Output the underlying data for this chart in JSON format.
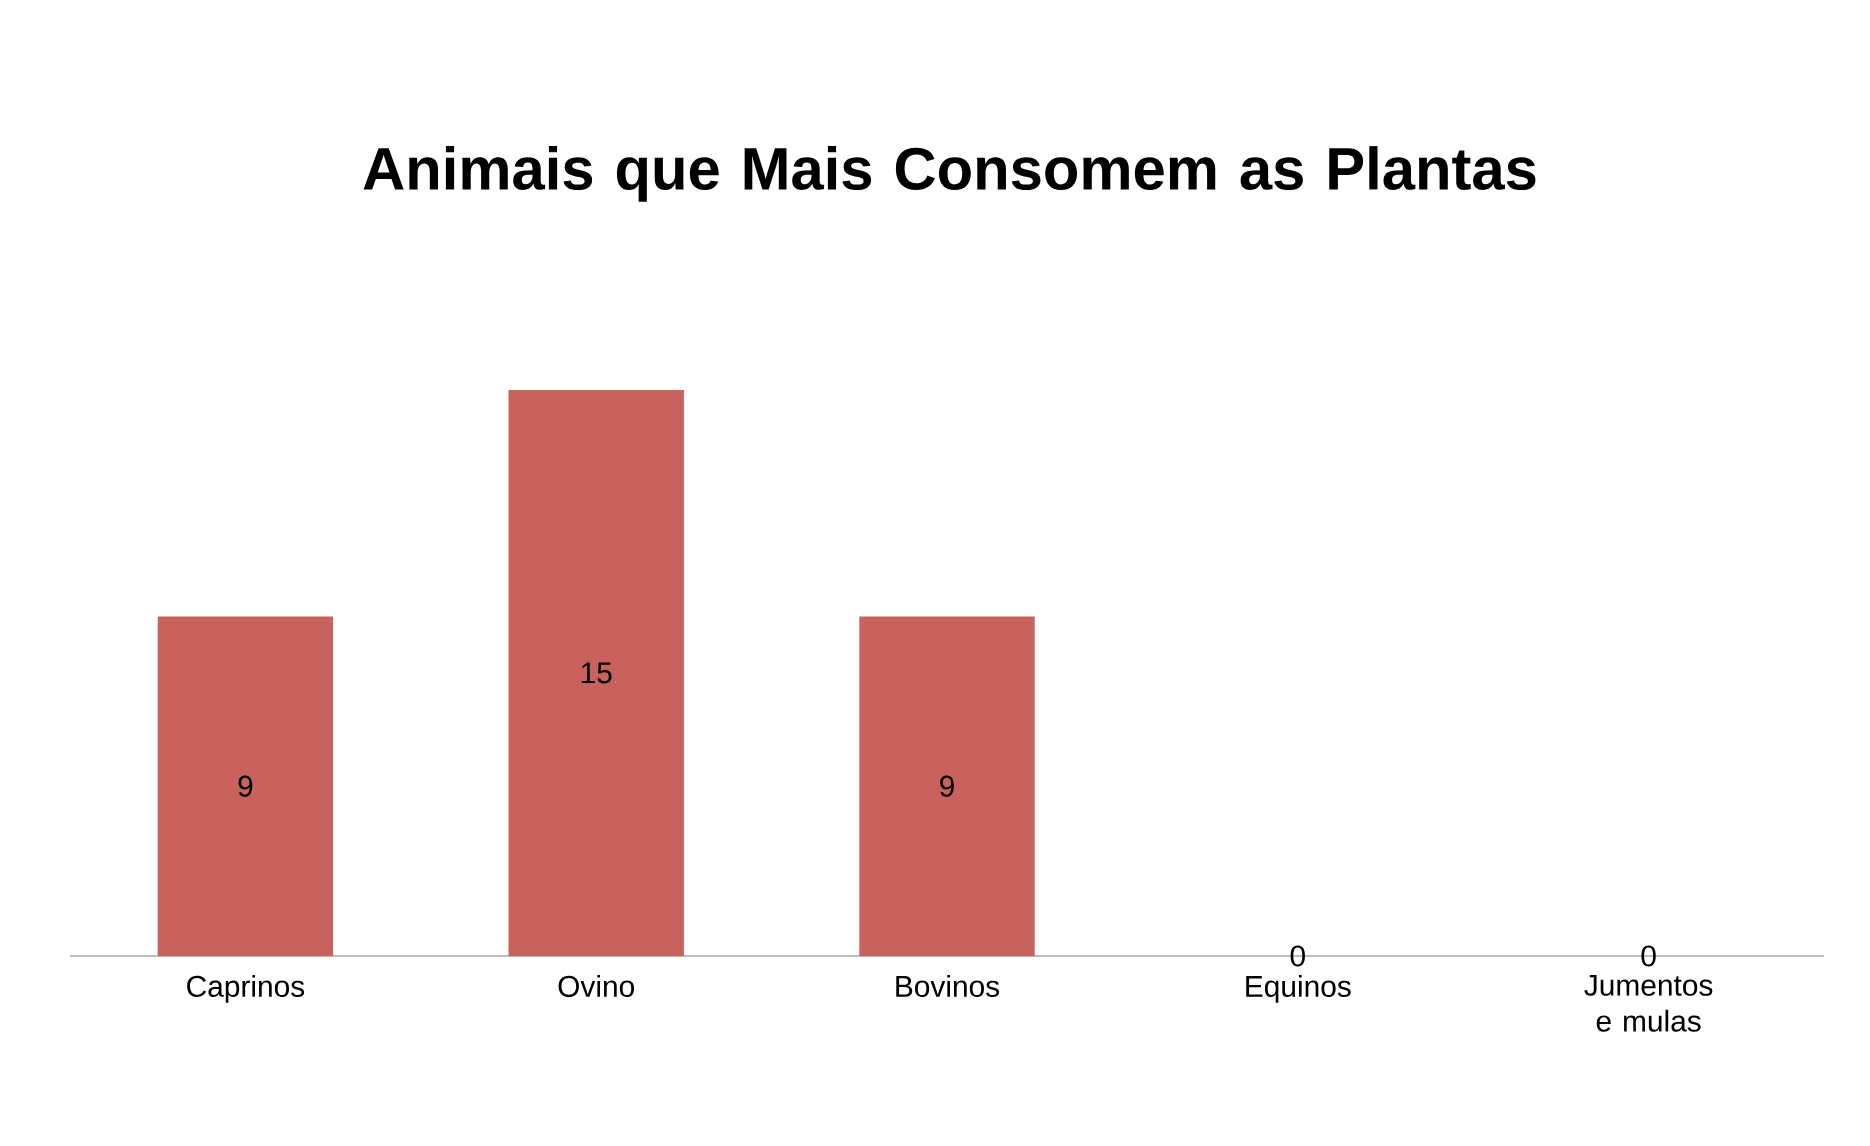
{
  "chart_data": {
    "type": "bar",
    "title": "Animais que Mais Consomem as Plantas",
    "categories": [
      "Caprinos",
      "Ovino",
      "Bovinos",
      "Equinos",
      "Jumentos e mulas"
    ],
    "values": [
      9,
      15,
      9,
      0,
      0
    ],
    "color": "#c9625c",
    "data_labels": true
  }
}
